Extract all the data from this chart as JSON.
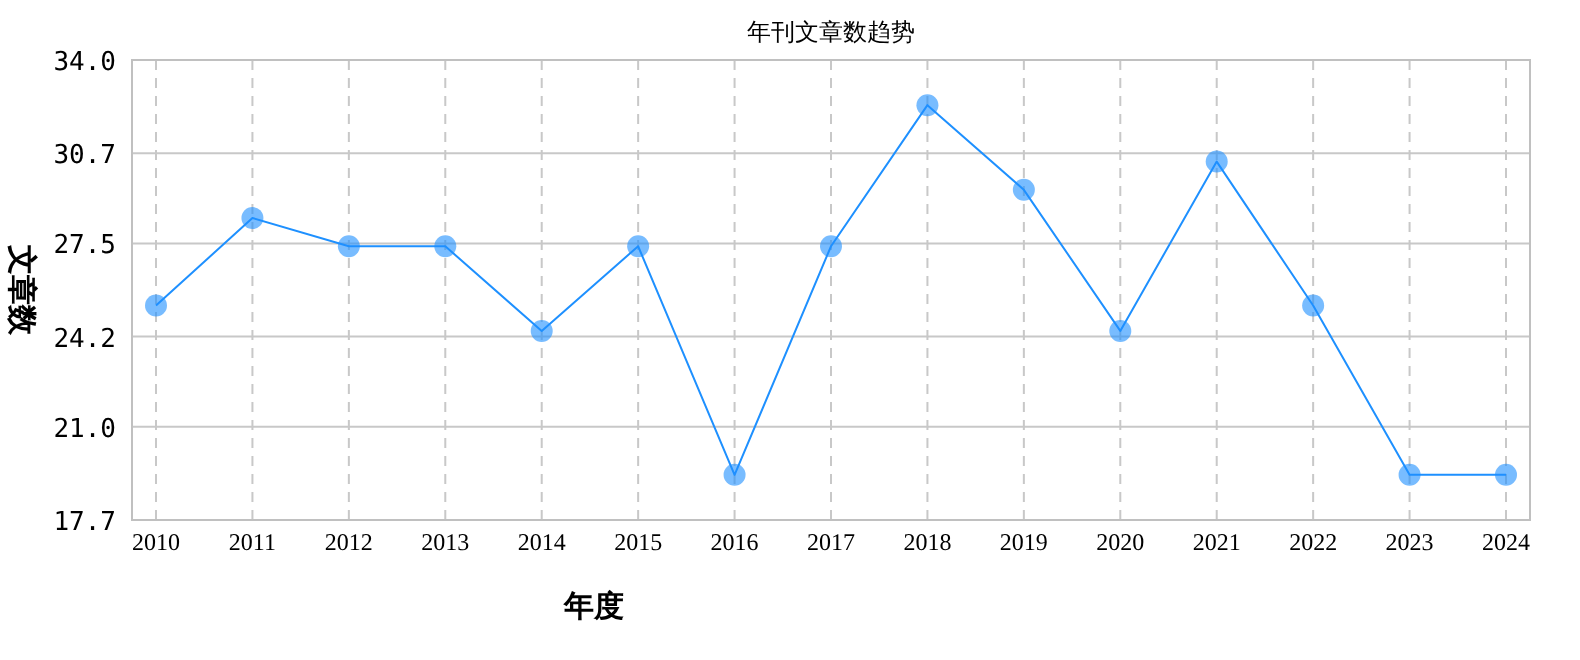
{
  "chart_data": {
    "type": "line",
    "title": "年刊文章数趋势",
    "xlabel": "年度",
    "ylabel": "文章数",
    "categories": [
      "2010",
      "2011",
      "2012",
      "2013",
      "2014",
      "2015",
      "2016",
      "2017",
      "2018",
      "2019",
      "2020",
      "2021",
      "2022",
      "2023",
      "2024"
    ],
    "values": [
      25.3,
      28.4,
      27.4,
      27.4,
      24.4,
      27.4,
      19.3,
      27.4,
      32.4,
      29.4,
      24.4,
      30.4,
      25.3,
      19.3,
      19.3
    ],
    "color": "#1e90ff",
    "marker": "circle",
    "line_style": "solid",
    "ylim": [
      17.7,
      34
    ],
    "yticks": [
      17.7,
      {
        "value": 21,
        "label": "21.0"
      },
      24.2,
      27.5,
      30.7,
      {
        "value": 34,
        "label": "34.0"
      }
    ],
    "grid": true
  }
}
